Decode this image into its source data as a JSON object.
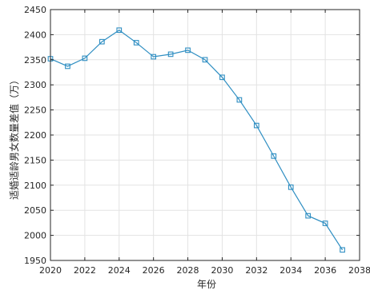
{
  "chart_data": {
    "type": "line",
    "title": "",
    "xlabel": "年份",
    "ylabel": "适婚适龄男女数量差值（万）",
    "xlim": [
      2020,
      2038
    ],
    "ylim": [
      1950,
      2450
    ],
    "xticks": [
      2020,
      2022,
      2024,
      2026,
      2028,
      2030,
      2032,
      2034,
      2036,
      2038
    ],
    "yticks": [
      1950,
      2000,
      2050,
      2100,
      2150,
      2200,
      2250,
      2300,
      2350,
      2400,
      2450
    ],
    "grid": true,
    "legend": "none",
    "series": [
      {
        "marker": "square",
        "color": "#2e8ec2",
        "x": [
          2020,
          2021,
          2022,
          2023,
          2024,
          2025,
          2026,
          2027,
          2028,
          2029,
          2030,
          2031,
          2032,
          2033,
          2034,
          2035,
          2036,
          2037
        ],
        "values": [
          2352,
          2337,
          2353,
          2386,
          2409,
          2384,
          2356,
          2361,
          2369,
          2350,
          2315,
          2270,
          2219,
          2158,
          2096,
          2039,
          2024,
          1971
        ]
      }
    ]
  }
}
